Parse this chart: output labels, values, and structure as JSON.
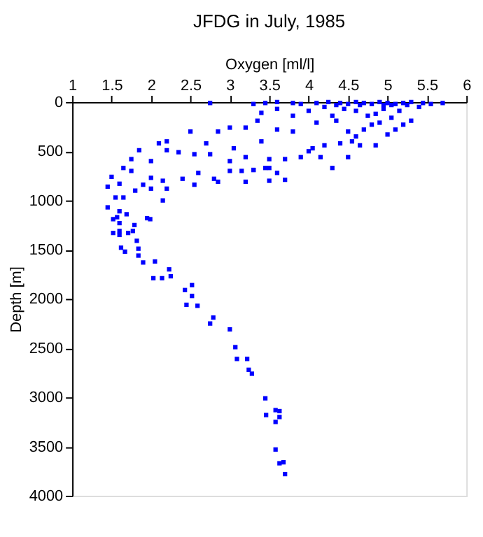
{
  "chart_data": {
    "type": "scatter",
    "title": "JFDG in July, 1985",
    "xlabel": "Oxygen [ml/l]",
    "ylabel": "Depth [m]",
    "xlim": [
      1,
      6
    ],
    "xticks": [
      1,
      1.5,
      2,
      2.5,
      3,
      3.5,
      4,
      4.5,
      5,
      5.5,
      6
    ],
    "ylim": [
      4000,
      0
    ],
    "yticks": [
      0,
      500,
      1000,
      1500,
      2000,
      2500,
      3000,
      3500,
      4000
    ],
    "grid": false,
    "marker": "square",
    "series": [
      {
        "color": "#0000ff",
        "x": [
          2.75,
          3.3,
          3.45,
          3.6,
          3.8,
          3.9,
          4.1,
          4.25,
          4.4,
          4.5,
          4.6,
          4.7,
          4.8,
          4.9,
          5.0,
          5.1,
          5.2,
          5.3,
          5.45,
          5.55,
          5.7,
          4.35,
          4.65,
          4.95,
          5.05,
          5.25,
          3.6,
          3.8,
          4.0,
          4.2,
          4.3,
          4.45,
          4.6,
          4.75,
          4.85,
          4.95,
          5.05,
          5.15,
          5.3,
          5.4,
          3.4,
          3.35,
          3.6,
          3.2,
          3.0,
          4.1,
          4.35,
          4.5,
          4.7,
          4.8,
          4.9,
          5.0,
          5.1,
          5.2,
          4.6,
          3.8,
          2.5,
          2.85,
          3.05,
          2.7,
          3.4,
          4.55,
          4.4,
          4.2,
          4.05,
          4.65,
          4.85,
          4.5,
          2.2,
          2.1,
          1.85,
          1.75,
          2.0,
          2.2,
          2.35,
          2.55,
          2.75,
          3.0,
          3.2,
          3.5,
          3.7,
          3.9,
          4.0,
          4.15,
          4.3,
          3.45,
          3.6,
          3.3,
          1.5,
          1.65,
          1.75,
          1.9,
          2.0,
          2.15,
          2.4,
          2.6,
          2.8,
          3.0,
          3.15,
          3.3,
          3.5,
          3.7,
          1.45,
          1.6,
          1.8,
          2.0,
          2.15,
          1.55,
          1.65,
          1.45,
          1.6,
          1.6,
          1.95,
          2.2,
          2.55,
          2.85,
          3.2,
          3.5,
          1.52,
          1.57,
          1.69,
          1.99,
          1.52,
          1.6,
          1.79,
          1.77,
          1.71,
          1.6,
          1.82,
          1.62,
          1.67,
          1.84,
          1.84,
          1.9,
          2.05,
          2.23,
          2.03,
          2.14,
          2.25,
          2.43,
          2.52,
          2.52,
          2.45,
          2.59,
          2.79,
          2.75,
          3.0,
          3.07,
          3.09,
          3.22,
          3.24,
          3.28,
          3.45,
          3.58,
          3.63,
          3.46,
          3.63,
          3.58,
          3.58,
          3.63,
          3.68,
          3.7
        ],
        "values": [
          10,
          20,
          10,
          0,
          10,
          20,
          10,
          0,
          10,
          20,
          0,
          10,
          20,
          0,
          10,
          20,
          10,
          0,
          10,
          20,
          10,
          30,
          30,
          30,
          30,
          30,
          70,
          140,
          90,
          50,
          140,
          70,
          90,
          140,
          120,
          70,
          160,
          90,
          190,
          50,
          110,
          190,
          280,
          260,
          260,
          210,
          190,
          300,
          280,
          230,
          210,
          330,
          280,
          230,
          350,
          300,
          300,
          300,
          470,
          420,
          400,
          400,
          420,
          440,
          470,
          440,
          440,
          560,
          400,
          420,
          490,
          580,
          600,
          490,
          510,
          530,
          530,
          600,
          560,
          580,
          580,
          560,
          500,
          560,
          670,
          670,
          720,
          690,
          760,
          670,
          700,
          840,
          770,
          800,
          780,
          720,
          780,
          700,
          700,
          690,
          670,
          790,
          860,
          830,
          900,
          880,
          1000,
          970,
          970,
          1070,
          1110,
          1230,
          1180,
          880,
          840,
          810,
          810,
          800,
          1190,
          1170,
          1140,
          1190,
          1330,
          1310,
          1250,
          1310,
          1330,
          1350,
          1410,
          1480,
          1520,
          1490,
          1560,
          1630,
          1620,
          1700,
          1790,
          1790,
          1770,
          1910,
          1860,
          1970,
          2060,
          2070,
          2190,
          2250,
          2310,
          2490,
          2610,
          2610,
          2720,
          2760,
          3010,
          3130,
          3140,
          3180,
          3200,
          3250,
          3530,
          3670,
          3660,
          3780
        ]
      }
    ]
  }
}
